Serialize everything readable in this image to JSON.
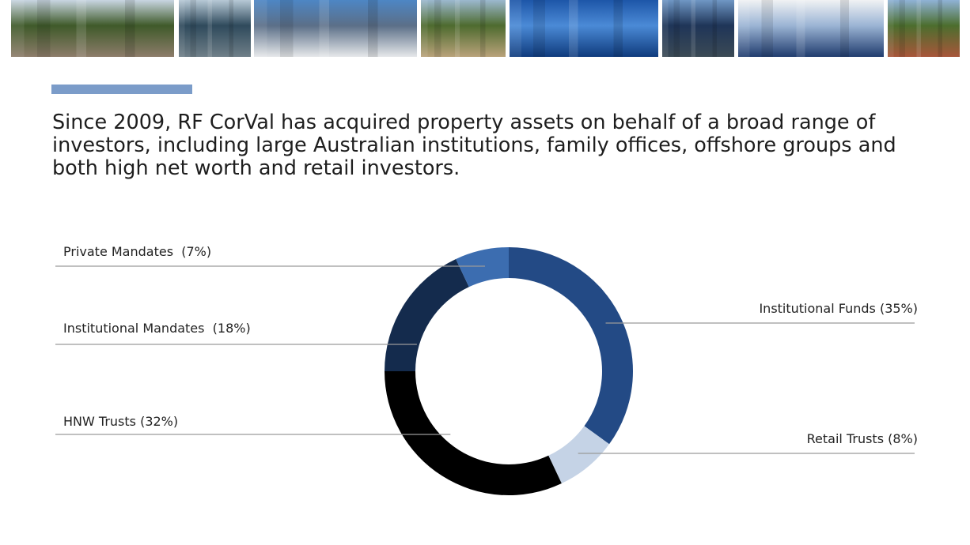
{
  "intro_text": "Since 2009, RF CorVal has acquired property assets on behalf of a broad range of investors, including large Australian institutions, family offices, offshore groups and both high net worth and retail investors.",
  "chart_data": {
    "type": "pie",
    "donut": true,
    "slices": [
      {
        "label": "Institutional Funds (35%)",
        "value": 35,
        "color": "#234a85"
      },
      {
        "label": "Retail Trusts (8%)",
        "value": 8,
        "color": "#c5d3e6"
      },
      {
        "label": "HNW Trusts (32%)",
        "value": 32,
        "color": "#000000"
      },
      {
        "label": "Institutional Mandates  (18%)",
        "value": 18,
        "color": "#142b4d"
      },
      {
        "label": "Private Mandates  (7%)",
        "value": 7,
        "color": "#3c6db0"
      }
    ]
  },
  "photos": [
    {
      "name": "street-photo",
      "sky": "#c9d6e2",
      "base": "#8d7c6a",
      "accent": "#3f5a2a"
    },
    {
      "name": "glass-tower-photo",
      "sky": "#b7c9d6",
      "base": "#6f7f88",
      "accent": "#2f4a5c"
    },
    {
      "name": "white-facade-photo",
      "sky": "#4d86c4",
      "base": "#e6e8ea",
      "accent": "#5b6f88"
    },
    {
      "name": "lobby-photo",
      "sky": "#9bb8cf",
      "base": "#b9a27a",
      "accent": "#4e6b2f"
    },
    {
      "name": "blue-glass-photo",
      "sky": "#1d56a8",
      "base": "#0f3b7d",
      "accent": "#4b8ad6"
    },
    {
      "name": "tower-photo",
      "sky": "#6f96c4",
      "base": "#3b4a55",
      "accent": "#1f3558"
    },
    {
      "name": "grid-facade-photo",
      "sky": "#f0f2f4",
      "base": "#203c6e",
      "accent": "#9bb4d4"
    },
    {
      "name": "corner-building-photo",
      "sky": "#8fb2d6",
      "base": "#a8563a",
      "accent": "#4c6e2e"
    }
  ]
}
